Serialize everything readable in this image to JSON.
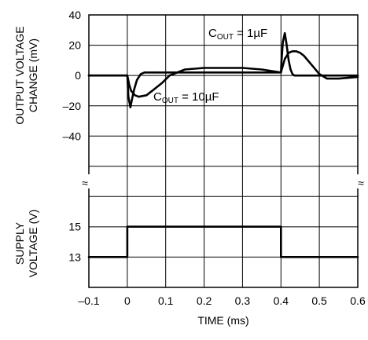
{
  "chart_data": {
    "type": "line",
    "xlabel": "TIME (ms)",
    "x_ticks": [
      "–0.1",
      "0",
      "0.1",
      "0.2",
      "0.3",
      "0.4",
      "0.5",
      "0.6"
    ],
    "xlim": [
      -0.1,
      0.6
    ],
    "grid": true,
    "panels": [
      {
        "name": "output_voltage_change",
        "ylabel_lines": [
          "OUTPUT VOLTAGE",
          "CHANGE (mV)"
        ],
        "ylim": [
          -60,
          40
        ],
        "y_ticks": [
          40,
          20,
          0,
          -20,
          -40
        ],
        "y_tick_labels": [
          "40",
          "20",
          "0",
          "–20",
          "–40"
        ],
        "series": [
          {
            "name": "COUT = 1µF",
            "x": [
              -0.1,
              0.0,
              0.003,
              0.008,
              0.012,
              0.018,
              0.025,
              0.035,
              0.045,
              0.06,
              0.08,
              0.1,
              0.15,
              0.2,
              0.25,
              0.3,
              0.35,
              0.4,
              0.401,
              0.405,
              0.41,
              0.415,
              0.42,
              0.425,
              0.43,
              0.435,
              0.44,
              0.45,
              0.46,
              0.5,
              0.6
            ],
            "y": [
              0,
              0,
              -14,
              -21,
              -16,
              -9,
              -3,
              1,
              2,
              2,
              2,
              2,
              2,
              2,
              2,
              2,
              2,
              2,
              8,
              22,
              28,
              20,
              10,
              4,
              1,
              0,
              0,
              0,
              0,
              0,
              0
            ]
          },
          {
            "name": "COUT = 10µF",
            "x": [
              -0.1,
              0.0,
              0.005,
              0.01,
              0.02,
              0.03,
              0.05,
              0.07,
              0.09,
              0.11,
              0.15,
              0.2,
              0.25,
              0.3,
              0.35,
              0.4,
              0.402,
              0.41,
              0.42,
              0.43,
              0.44,
              0.45,
              0.46,
              0.48,
              0.5,
              0.52,
              0.55,
              0.6
            ],
            "y": [
              0,
              0,
              -6,
              -10,
              -13,
              -14,
              -13,
              -9,
              -5,
              0,
              4,
              5,
              5,
              5,
              4,
              2,
              4,
              11,
              15,
              16,
              16,
              15,
              13,
              7,
              1,
              -2,
              -2,
              -1
            ]
          }
        ],
        "annotations": [
          {
            "main": "C",
            "sub": "OUT",
            "rest": " = 1µF"
          },
          {
            "main": "C",
            "sub": "OUT",
            "rest": " = 10µF"
          }
        ]
      },
      {
        "name": "supply_voltage",
        "ylabel_lines": [
          "SUPPLY",
          "VOLTAGE (V)"
        ],
        "ylim": [
          11,
          17
        ],
        "y_ticks": [
          15,
          13
        ],
        "y_tick_labels": [
          "15",
          "13"
        ],
        "series": [
          {
            "name": "supply",
            "x": [
              -0.1,
              0.0,
              0.0,
              0.4,
              0.4,
              0.6
            ],
            "y": [
              13,
              13,
              15,
              15,
              13,
              13
            ]
          }
        ]
      }
    ],
    "axis_break_symbol": "≈"
  }
}
